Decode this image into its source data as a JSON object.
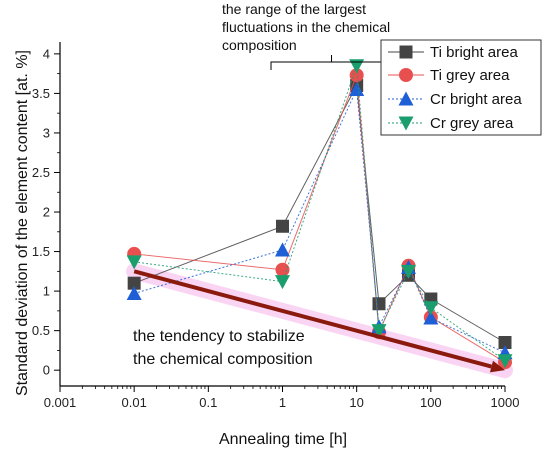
{
  "chart_data": {
    "type": "line",
    "xlabel": "Annealing time [h]",
    "ylabel": "Standard deviation of the element content [at. %]",
    "x_scale": "log",
    "xlim": [
      0.001,
      1000
    ],
    "ylim": [
      -0.2,
      4.15
    ],
    "x_ticks": [
      0.001,
      0.01,
      0.1,
      1,
      10,
      100,
      1000
    ],
    "x_tick_labels": [
      "0.001",
      "0.01",
      "0.1",
      "1",
      "10",
      "100",
      "1000"
    ],
    "y_ticks": [
      0,
      0.5,
      1,
      1.5,
      2,
      2.5,
      3,
      3.5,
      4
    ],
    "y_tick_labels": [
      "0",
      "0.5",
      "1",
      "1.5",
      "2",
      "2.5",
      "3",
      "3.5",
      "4"
    ],
    "grid": false,
    "legend_position": "top-right",
    "x": [
      0.01,
      1,
      10,
      20,
      50,
      100,
      1000
    ],
    "series": [
      {
        "name": "Ti bright area",
        "color": "#444444",
        "marker": "square",
        "line": "solid",
        "values": [
          1.1,
          1.82,
          3.6,
          0.84,
          1.2,
          0.9,
          0.35
        ]
      },
      {
        "name": "Ti grey area",
        "color": "#e8504f",
        "marker": "circle",
        "line": "solid",
        "values": [
          1.47,
          1.27,
          3.73,
          0.48,
          1.32,
          0.67,
          0.1
        ]
      },
      {
        "name": "Cr bright area",
        "color": "#1f5fd6",
        "marker": "triangle-up",
        "line": "dotted",
        "values": [
          0.97,
          1.52,
          3.55,
          0.55,
          1.3,
          0.66,
          0.22
        ]
      },
      {
        "name": "Cr grey area",
        "color": "#1a9e6e",
        "marker": "triangle-down",
        "line": "dotted",
        "values": [
          1.37,
          1.12,
          3.85,
          0.5,
          1.25,
          0.79,
          0.12
        ]
      }
    ],
    "annotations": {
      "fluctuation_range": {
        "text": [
          "the range of the largest",
          "fluctuations in the chemical",
          "composition"
        ],
        "x_range": [
          0.7,
          30
        ]
      },
      "trend": {
        "text": [
          "the tendency to stabilize",
          "the chemical composition"
        ],
        "from": {
          "x": 0.01,
          "y": 1.25
        },
        "to": {
          "x": 1000,
          "y": 0.0
        },
        "color": "#8b1a0e"
      }
    }
  }
}
